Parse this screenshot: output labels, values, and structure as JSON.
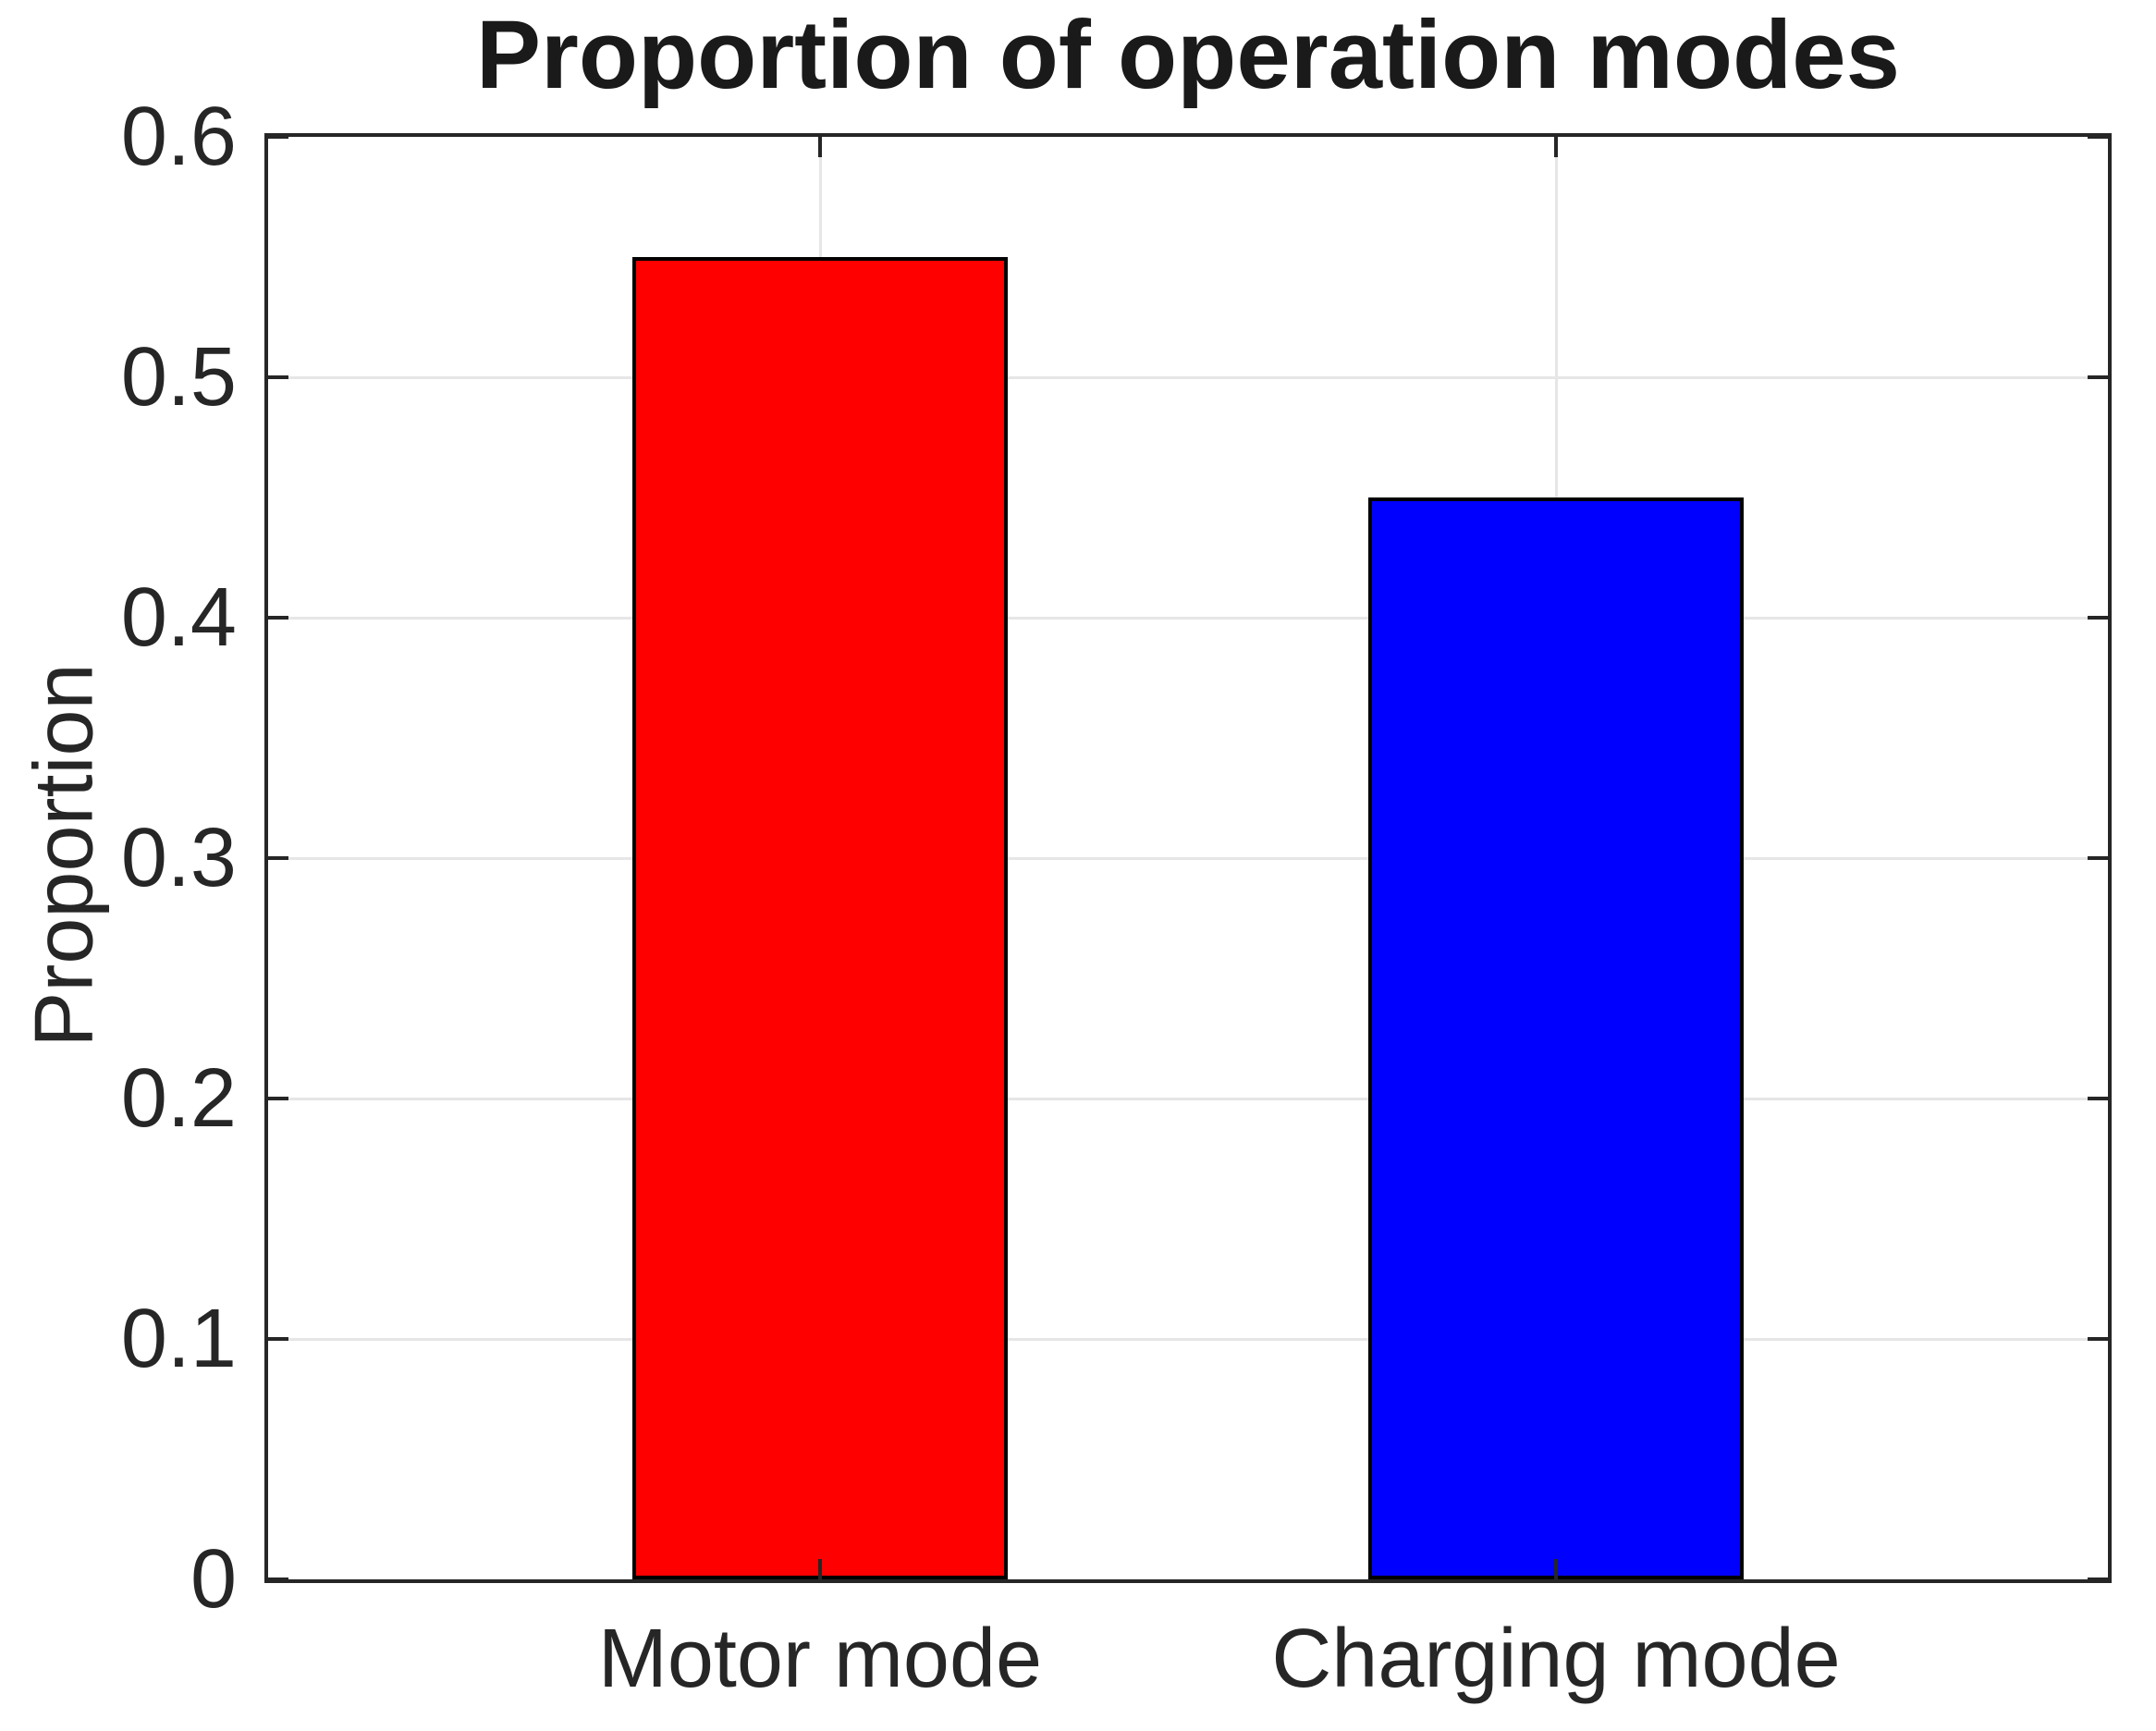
{
  "chart_data": {
    "type": "bar",
    "title": "Proportion of operation modes",
    "ylabel": "Proportion",
    "xlabel": "",
    "categories": [
      "Motor mode",
      "Charging mode"
    ],
    "values": [
      0.55,
      0.45
    ],
    "bar_colors": [
      "#ff0000",
      "#0000ff"
    ],
    "ylim": [
      0,
      0.6
    ],
    "yticks": [
      0,
      0.1,
      0.2,
      0.3,
      0.4,
      0.5,
      0.6
    ],
    "ytick_labels": [
      "0",
      "0.1",
      "0.2",
      "0.3",
      "0.4",
      "0.5",
      "0.6"
    ],
    "xlim": [
      0.25,
      2.75
    ],
    "bar_width": 0.51,
    "grid": true,
    "legend_position": "none",
    "colors": {
      "axis": "#262626",
      "grid": "#e6e6e6",
      "bar_edge": "#000000",
      "text": "#262626",
      "background": "#ffffff"
    }
  }
}
